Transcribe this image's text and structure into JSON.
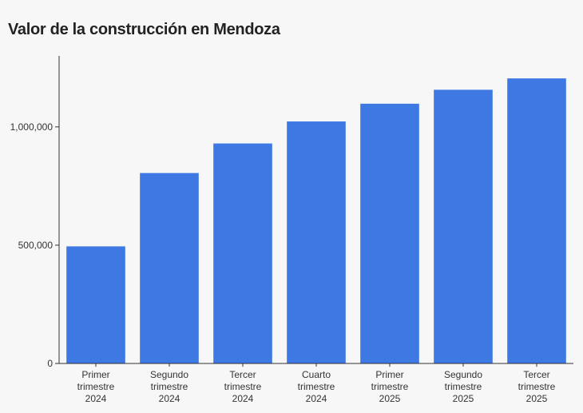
{
  "chart_data": {
    "type": "bar",
    "title": "Valor de la construcción en Mendoza",
    "xlabel": "",
    "ylabel": "",
    "categories": [
      "Primer trimestre 2024",
      "Segundo trimestre 2024",
      "Tercer trimestre 2024",
      "Cuarto trimestre 2024",
      "Primer trimestre 2025",
      "Segundo trimestre 2025",
      "Tercer trimestre 2025"
    ],
    "category_lines": [
      [
        "Primer",
        "trimestre",
        "2024"
      ],
      [
        "Segundo",
        "trimestre",
        "2024"
      ],
      [
        "Tercer",
        "trimestre",
        "2024"
      ],
      [
        "Cuarto",
        "trimestre",
        "2024"
      ],
      [
        "Primer",
        "trimestre",
        "2025"
      ],
      [
        "Segundo",
        "trimestre",
        "2025"
      ],
      [
        "Tercer",
        "trimestre",
        "2025"
      ]
    ],
    "values": [
      495000,
      805000,
      930000,
      1023000,
      1098000,
      1157000,
      1205000
    ],
    "ylim": [
      0,
      1300000
    ],
    "yticks": [
      0,
      500000,
      1000000
    ],
    "ytick_labels": [
      "0",
      "500,000",
      "1,000,000"
    ],
    "bar_color": "#3d78e3",
    "grid": false,
    "legend": "none"
  }
}
